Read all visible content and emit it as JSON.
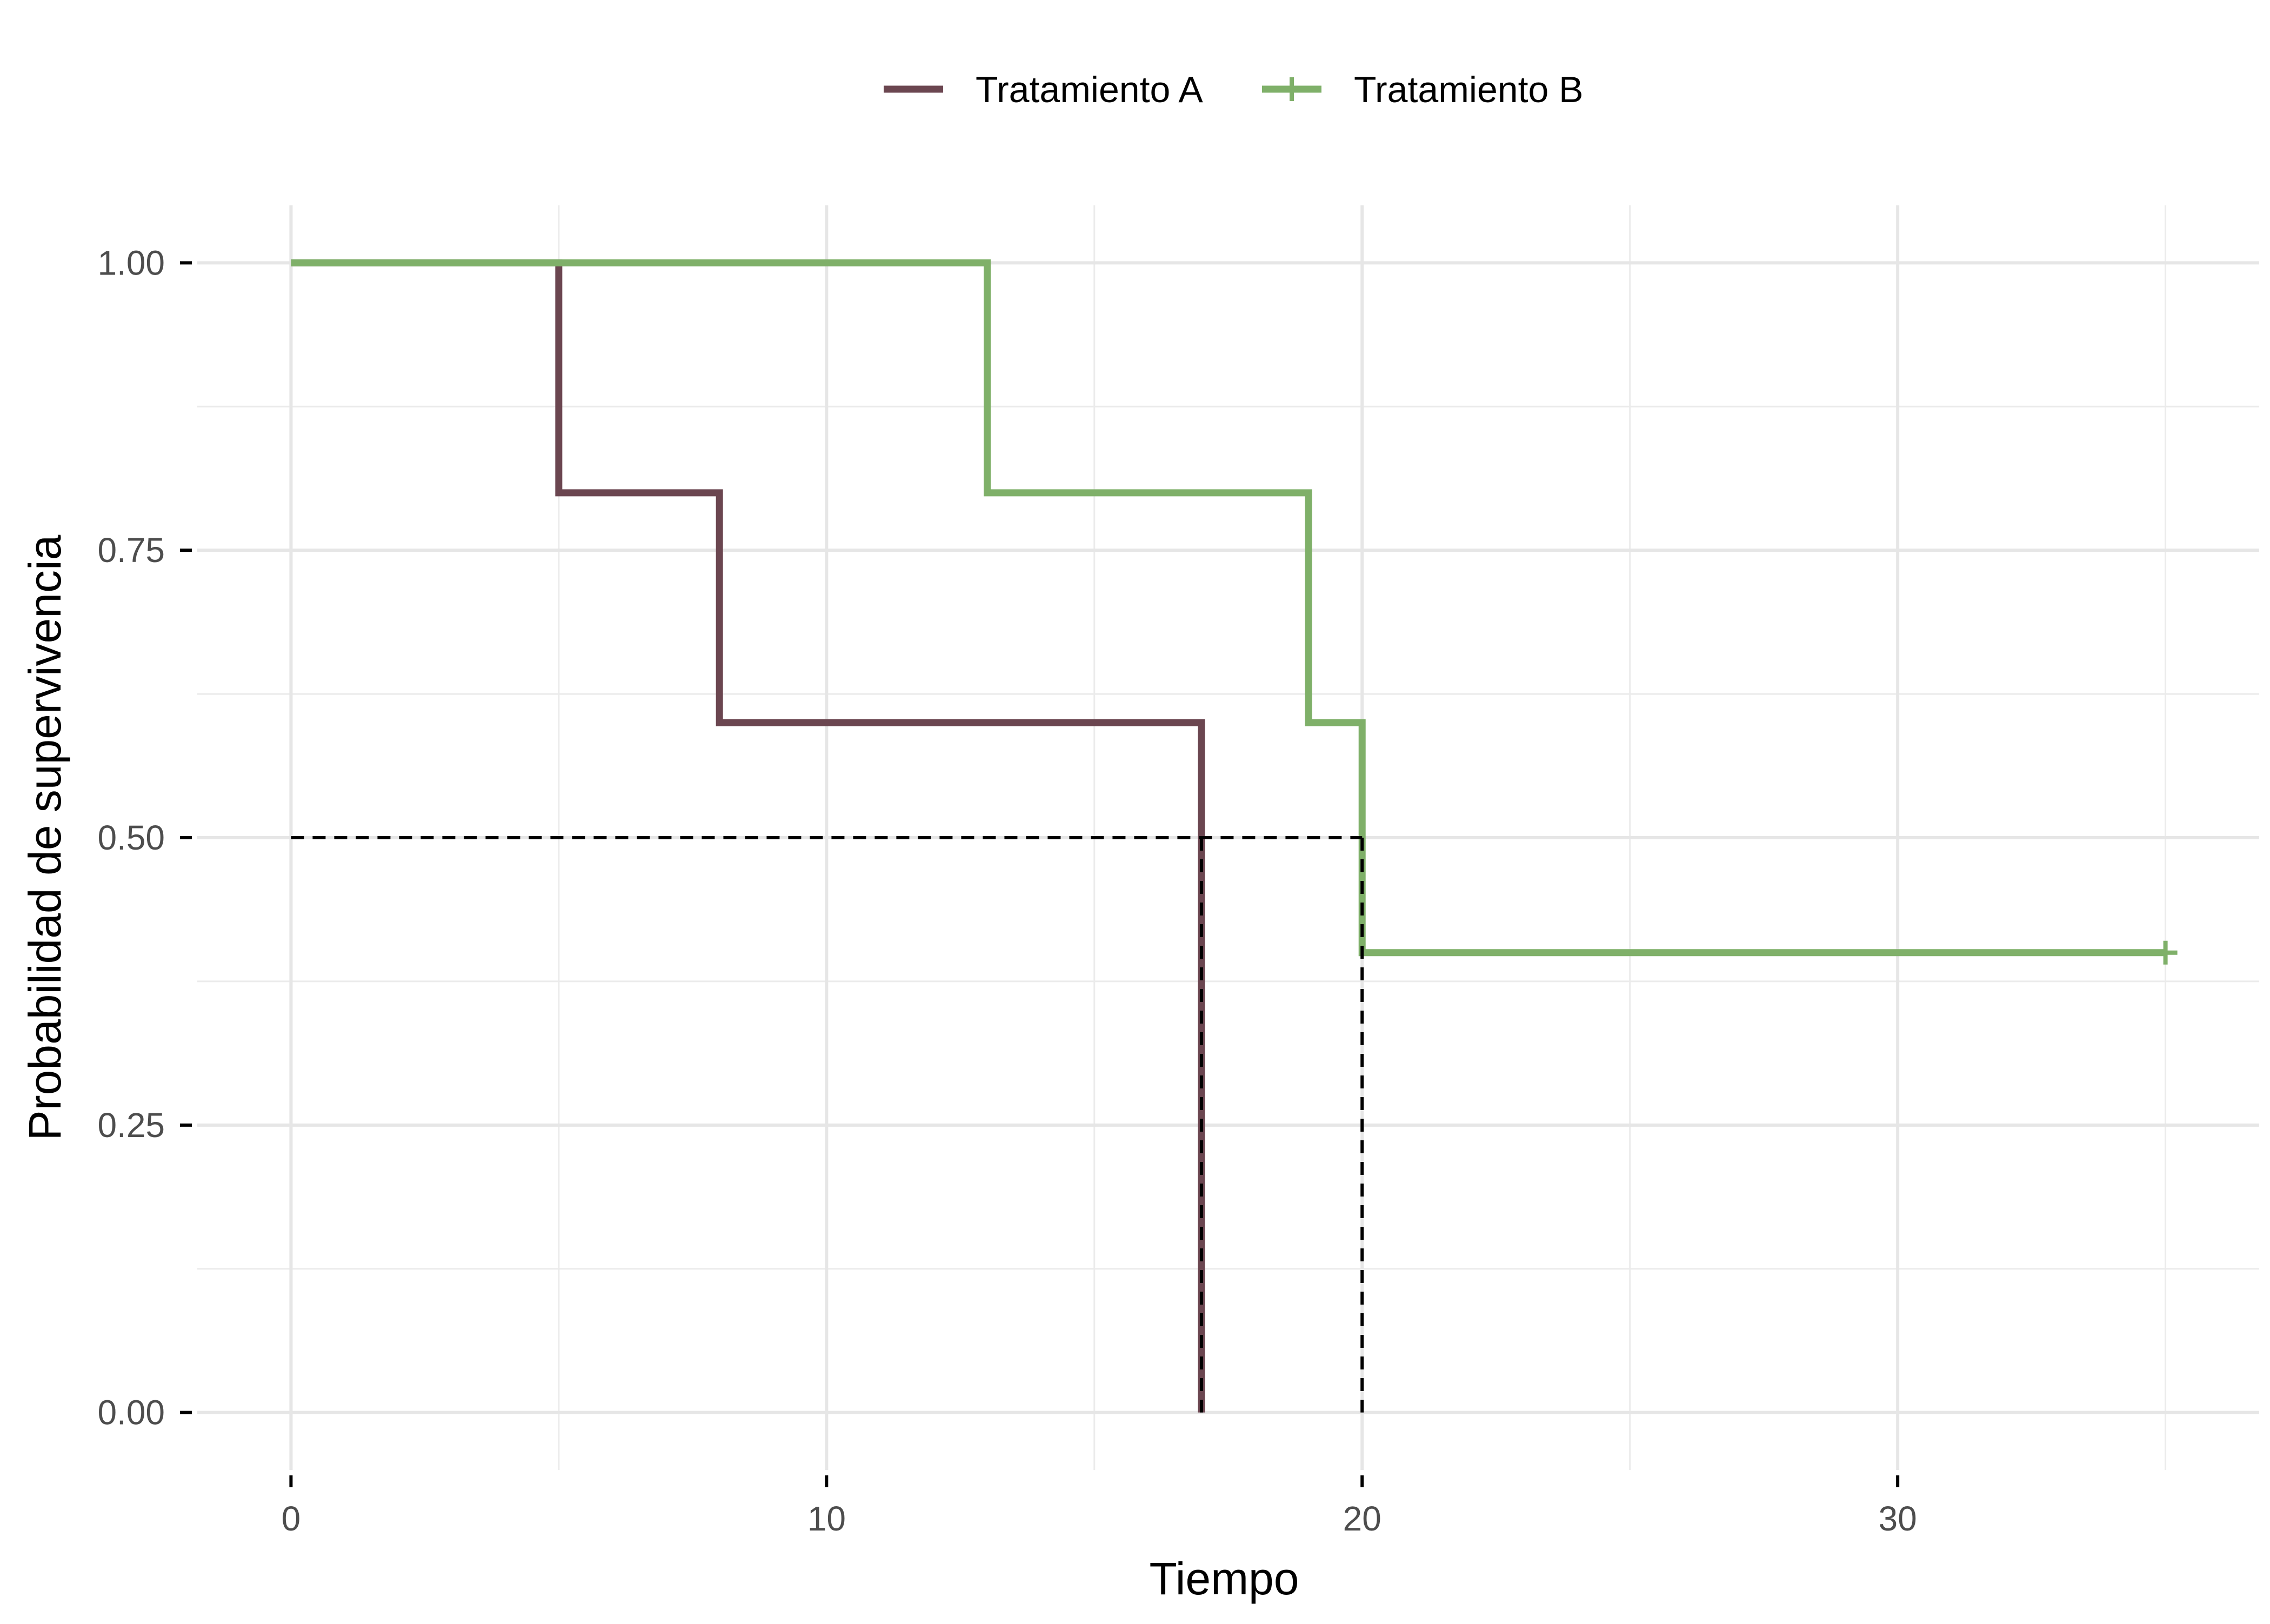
{
  "chart_data": {
    "type": "line",
    "subtype": "kaplan-meier-step",
    "title": "",
    "xlabel": "Tiempo",
    "ylabel": "Probabilidad de supervivencia",
    "xlim": [
      -1.75,
      36.75
    ],
    "ylim": [
      -0.05,
      1.05
    ],
    "x_ticks": [
      0,
      10,
      20,
      30
    ],
    "x_tick_labels": [
      "0",
      "10",
      "20",
      "30"
    ],
    "x_minor_ticks": [
      5,
      15,
      25,
      35
    ],
    "y_ticks": [
      0,
      0.25,
      0.5,
      0.75,
      1
    ],
    "y_tick_labels": [
      "0.00",
      "0.25",
      "0.50",
      "0.75",
      "1.00"
    ],
    "y_minor_ticks": [
      0.125,
      0.375,
      0.625,
      0.875
    ],
    "grid": true,
    "legend_position": "top",
    "series": [
      {
        "name": "Tratamiento A",
        "color": "#6b4650",
        "x": [
          0,
          5,
          8,
          17
        ],
        "y": [
          1.0,
          0.8,
          0.6,
          0.0
        ],
        "end_x": 17,
        "censor_marks": []
      },
      {
        "name": "Tratamiento B",
        "color": "#7fb069",
        "x": [
          0,
          13,
          19,
          20
        ],
        "y": [
          1.0,
          0.8,
          0.6,
          0.4
        ],
        "end_x": 35,
        "censor_marks": [
          {
            "x": 35,
            "y": 0.4
          }
        ]
      }
    ],
    "median_survival": {
      "y": 0.5,
      "x_values": [
        17,
        20
      ],
      "line_color": "#000000",
      "line_style": "dashed"
    }
  }
}
